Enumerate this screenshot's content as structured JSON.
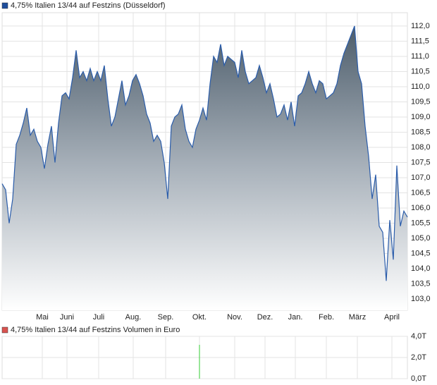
{
  "chart_data": [
    {
      "type": "area",
      "title": "4,75% Italien 13/44 auf Festzins (Düsseldorf)",
      "legend_color": "#1f4e9c",
      "series": [
        {
          "name": "4,75% Italien 13/44 auf Festzins (Düsseldorf)",
          "color": "#2a5caa",
          "values": [
            106.8,
            106.6,
            105.5,
            106.3,
            108.1,
            108.4,
            108.8,
            109.3,
            108.4,
            108.6,
            108.2,
            108.0,
            107.3,
            108.1,
            108.7,
            107.5,
            108.8,
            109.7,
            109.8,
            109.6,
            110.3,
            111.2,
            110.3,
            110.5,
            110.2,
            110.6,
            110.2,
            110.5,
            110.2,
            110.7,
            109.6,
            108.7,
            109.0,
            109.6,
            110.2,
            109.4,
            109.7,
            110.2,
            110.4,
            110.1,
            109.7,
            109.1,
            108.8,
            108.2,
            108.4,
            108.2,
            107.5,
            106.3,
            108.7,
            109.0,
            109.1,
            109.4,
            108.6,
            108.2,
            108.0,
            108.6,
            108.9,
            109.3,
            108.9,
            110.1,
            111.0,
            110.8,
            111.4,
            110.7,
            111.0,
            110.9,
            110.8,
            110.3,
            111.2,
            110.5,
            110.1,
            110.2,
            110.3,
            110.7,
            110.3,
            109.8,
            110.1,
            109.6,
            109.0,
            109.1,
            109.4,
            108.9,
            109.5,
            108.7,
            109.7,
            109.8,
            110.1,
            110.5,
            110.1,
            109.8,
            110.2,
            110.1,
            109.6,
            109.7,
            109.8,
            110.1,
            110.7,
            111.1,
            111.4,
            111.7,
            112.0,
            110.5,
            110.1,
            108.7,
            107.7,
            106.3,
            107.1,
            105.4,
            105.2,
            103.6,
            105.6,
            104.3,
            107.4,
            105.4,
            105.9,
            105.7
          ]
        }
      ],
      "xlim": [
        0,
        115
      ],
      "xticks": [
        {
          "value": 11.4,
          "label": "Mai"
        },
        {
          "value": 18.4,
          "label": "Juni"
        },
        {
          "value": 27.4,
          "label": "Juli"
        },
        {
          "value": 37.2,
          "label": "Aug."
        },
        {
          "value": 46.4,
          "label": "Sep."
        },
        {
          "value": 56,
          "label": "Okt."
        },
        {
          "value": 66,
          "label": "Nov."
        },
        {
          "value": 74.6,
          "label": "Dez."
        },
        {
          "value": 83.2,
          "label": "Jan."
        },
        {
          "value": 92,
          "label": "Feb."
        },
        {
          "value": 100.8,
          "label": "März"
        },
        {
          "value": 110.6,
          "label": "April"
        }
      ],
      "ylim": [
        102.63,
        112.44
      ],
      "yticks": [
        {
          "value": 103,
          "label": "103,0"
        },
        {
          "value": 103.5,
          "label": "103,5"
        },
        {
          "value": 104,
          "label": "104,0"
        },
        {
          "value": 104.5,
          "label": "104,5"
        },
        {
          "value": 105,
          "label": "105,0"
        },
        {
          "value": 105.5,
          "label": "105,5"
        },
        {
          "value": 106,
          "label": "106,0"
        },
        {
          "value": 106.5,
          "label": "106,5"
        },
        {
          "value": 107,
          "label": "107,0"
        },
        {
          "value": 107.5,
          "label": "107,5"
        },
        {
          "value": 108,
          "label": "108,0"
        },
        {
          "value": 108.5,
          "label": "108,5"
        },
        {
          "value": 109,
          "label": "109,0"
        },
        {
          "value": 109.5,
          "label": "109,5"
        },
        {
          "value": 110,
          "label": "110,0"
        },
        {
          "value": 110.5,
          "label": "110,5"
        },
        {
          "value": 111,
          "label": "111,0"
        },
        {
          "value": 111.5,
          "label": "111,5"
        },
        {
          "value": 112,
          "label": "112,0"
        }
      ],
      "grid": true
    },
    {
      "type": "bar",
      "title": "4,75% Italien 13/44 auf Festzins Volumen in Euro",
      "legend_color": "#d9534f",
      "series": [
        {
          "name": "4,75% Italien 13/44 auf Festzins Volumen in Euro",
          "color": "#33cc33",
          "values": [
            0,
            0,
            0,
            0,
            0,
            0,
            0,
            0,
            0,
            0,
            0,
            0,
            0,
            0,
            0,
            0,
            0,
            0,
            0,
            0,
            0,
            0,
            0,
            0,
            0,
            0,
            0,
            0,
            0,
            0,
            0,
            0,
            0,
            0,
            0,
            0,
            0,
            0,
            0,
            0,
            0,
            0,
            0,
            0,
            0,
            0,
            0,
            0,
            0,
            0,
            0,
            0,
            0,
            0,
            0,
            0,
            3.2,
            0,
            0,
            0,
            0,
            0,
            0,
            0,
            0,
            0,
            0,
            0,
            0,
            0,
            0,
            0,
            0,
            0,
            0,
            0,
            0,
            0,
            0,
            0,
            0,
            0,
            0,
            0,
            0,
            0,
            0,
            0,
            0,
            0,
            0,
            0,
            0,
            0,
            0,
            0,
            0,
            0,
            0,
            0,
            0,
            0,
            0,
            0,
            0,
            0,
            0,
            0,
            0,
            0,
            0,
            0,
            0,
            0,
            0,
            0
          ]
        }
      ],
      "xlim": [
        0,
        115
      ],
      "xticks": [
        {
          "value": 11.4,
          "label": "Mai"
        },
        {
          "value": 18.4,
          "label": "Juni"
        },
        {
          "value": 27.4,
          "label": "Juli"
        },
        {
          "value": 37.2,
          "label": "Aug."
        },
        {
          "value": 46.4,
          "label": "Sep."
        },
        {
          "value": 56,
          "label": "Okt."
        },
        {
          "value": 66,
          "label": "Nov."
        },
        {
          "value": 74.6,
          "label": "Dez."
        },
        {
          "value": 83.2,
          "label": "Jan."
        },
        {
          "value": 92,
          "label": "Feb."
        },
        {
          "value": 100.8,
          "label": "März"
        },
        {
          "value": 110.6,
          "label": "April"
        }
      ],
      "ylim": [
        0,
        4
      ],
      "yticks": [
        {
          "value": 0,
          "label": "0,0T"
        },
        {
          "value": 2,
          "label": "2,0T"
        },
        {
          "value": 4,
          "label": "4,0T"
        }
      ],
      "grid": true
    }
  ]
}
